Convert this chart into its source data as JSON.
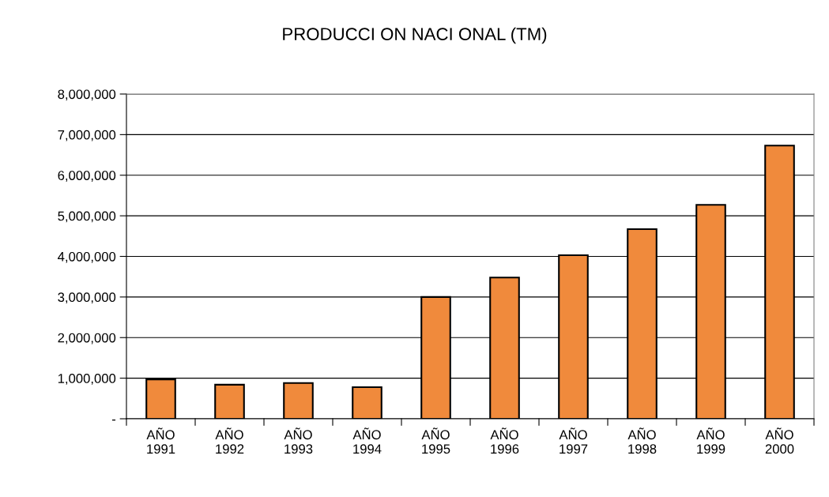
{
  "chart_data": {
    "type": "bar",
    "title": "PRODUCCI ON NACI ONAL (TM)",
    "categories": [
      "AÑO\n1991",
      "AÑO\n1992",
      "AÑO\n1993",
      "AÑO\n1994",
      "AÑO\n1995",
      "AÑO\n1996",
      "AÑO\n1997",
      "AÑO\n1998",
      "AÑO\n1999",
      "AÑO\n2000"
    ],
    "values": [
      970000,
      840000,
      880000,
      780000,
      3000000,
      3480000,
      4030000,
      4670000,
      5270000,
      6730000
    ],
    "color": "#f08a3c",
    "ylim": [
      0,
      8000000
    ],
    "yticks": [
      {
        "value": 0,
        "label": "-"
      },
      {
        "value": 1000000,
        "label": "1,000,000"
      },
      {
        "value": 2000000,
        "label": "2,000,000"
      },
      {
        "value": 3000000,
        "label": "3,000,000"
      },
      {
        "value": 4000000,
        "label": "4,000,000"
      },
      {
        "value": 5000000,
        "label": "5,000,000"
      },
      {
        "value": 6000000,
        "label": "6,000,000"
      },
      {
        "value": 7000000,
        "label": "7,000,000"
      },
      {
        "value": 8000000,
        "label": "8,000,000"
      }
    ],
    "grid": "y"
  }
}
